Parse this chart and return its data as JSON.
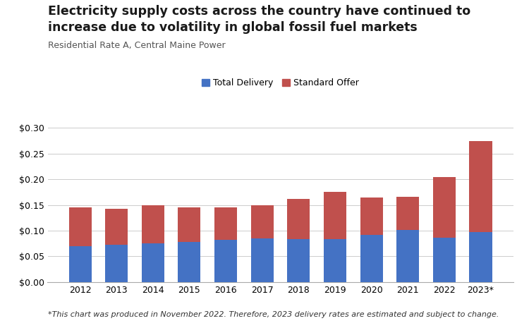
{
  "years": [
    "2012",
    "2013",
    "2014",
    "2015",
    "2016",
    "2017",
    "2018",
    "2019",
    "2020",
    "2021",
    "2022",
    "2023*"
  ],
  "total_delivery": [
    0.07,
    0.073,
    0.076,
    0.078,
    0.082,
    0.085,
    0.084,
    0.084,
    0.092,
    0.101,
    0.087,
    0.097
  ],
  "standard_offer": [
    0.075,
    0.069,
    0.074,
    0.067,
    0.064,
    0.065,
    0.078,
    0.091,
    0.072,
    0.065,
    0.118,
    0.178
  ],
  "color_delivery": "#4472C4",
  "color_standard": "#C0504D",
  "title_line1": "Electricity supply costs across the country have continued to",
  "title_line2": "increase due to volatility in global fossil fuel markets",
  "subtitle": "Residential Rate A, Central Maine Power",
  "legend_delivery": "Total Delivery",
  "legend_standard": "Standard Offer",
  "footnote": "*This chart was produced in November 2022. Therefore, 2023 delivery rates are estimated and subject to change.",
  "ylim": [
    0,
    0.3
  ],
  "yticks": [
    0.0,
    0.05,
    0.1,
    0.15,
    0.2,
    0.25,
    0.3
  ],
  "background_color": "#FFFFFF",
  "title_fontsize": 12.5,
  "subtitle_fontsize": 9,
  "tick_fontsize": 9,
  "footnote_fontsize": 8,
  "legend_fontsize": 9
}
